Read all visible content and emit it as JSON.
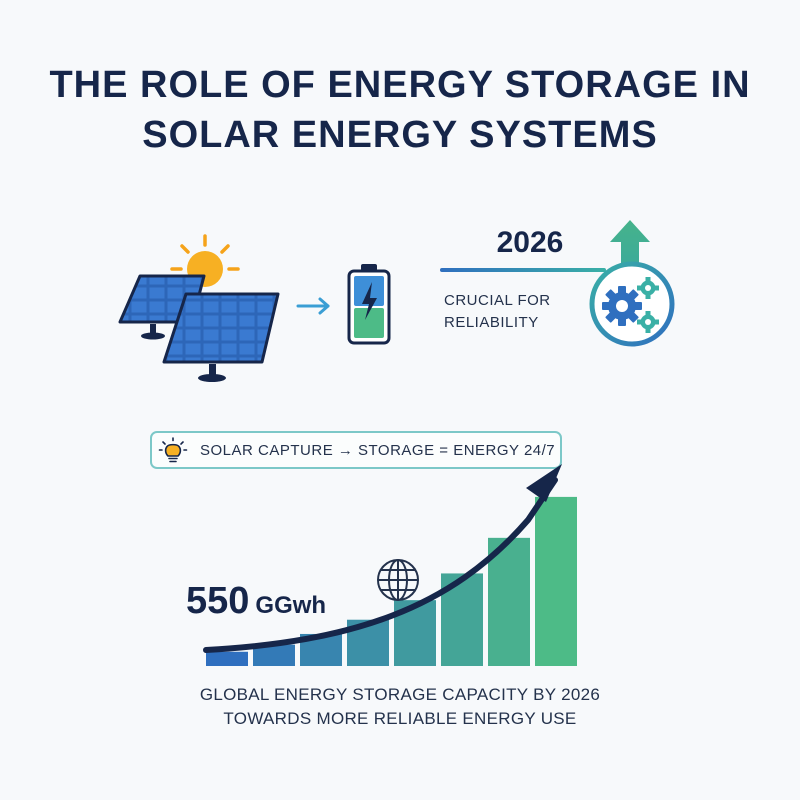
{
  "title": {
    "line1": "THE ROLE OF ENERGY STORAGE IN",
    "line2": "SOLAR ENERGY SYSTEMS"
  },
  "timeline": {
    "year": "2026",
    "label_line1": "CRUCIAL FOR",
    "label_line2": "RELIABILITY"
  },
  "equation": {
    "text": "SOLAR CAPTURE → STORAGE = ENERGY 24/7"
  },
  "stat": {
    "value": "550",
    "unit": "GGwh"
  },
  "caption": {
    "line1": "GLOBAL ENERGY STORAGE CAPACITY BY 2026",
    "line2": "TOWARDS MORE RELIABLE ENERGY USE"
  },
  "icons": {
    "sun": "sun-icon",
    "solar_panels": "solar-panel-icon",
    "arrow": "arrow-right-icon",
    "battery": "battery-charging-icon",
    "gears": "gears-icon",
    "up_arrow": "arrow-up-icon",
    "bulb": "lightbulb-icon",
    "globe": "globe-icon",
    "trend": "trend-arrow-icon"
  },
  "colors": {
    "navy": "#16264a",
    "blue": "#2f6fbf",
    "green": "#4dbb87",
    "teal": "#3ab0a6",
    "sun": "#f5a31a"
  },
  "growth_bars": [
    0.08,
    0.12,
    0.18,
    0.26,
    0.37,
    0.52,
    0.72,
    0.95
  ]
}
